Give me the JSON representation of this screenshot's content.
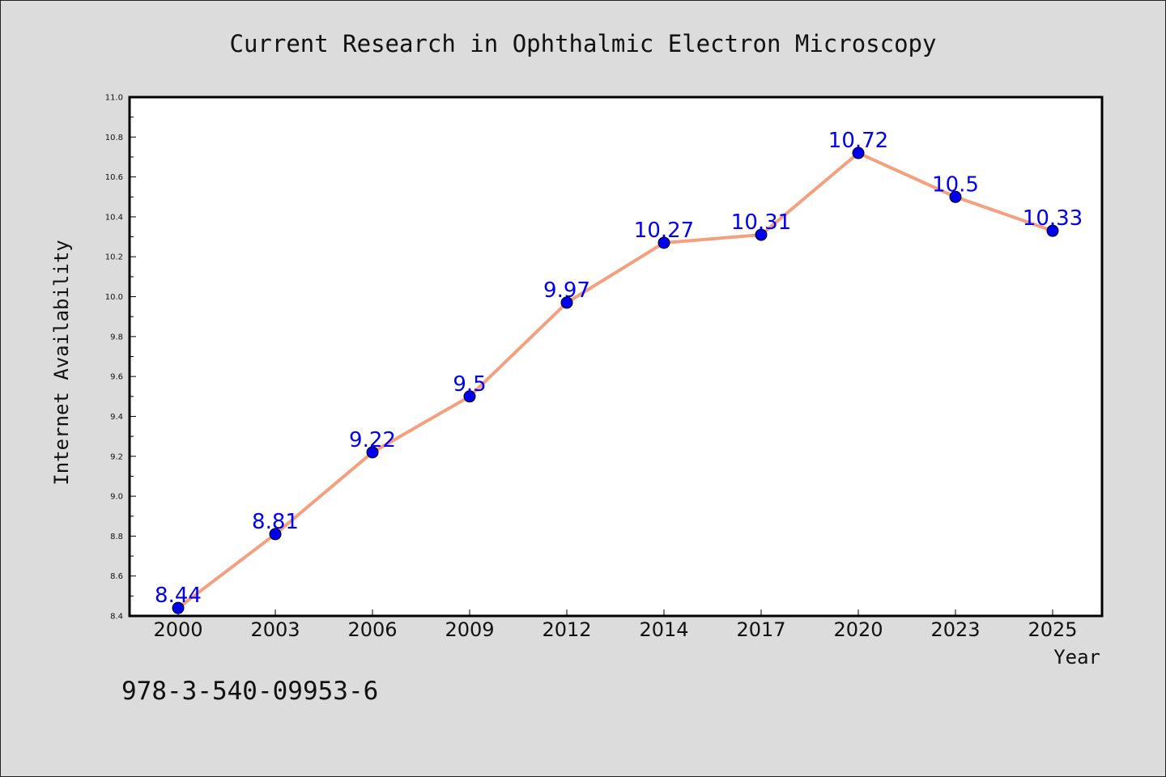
{
  "chart_data": {
    "type": "line",
    "title": "Current Research in Ophthalmic Electron Microscopy",
    "xlabel": "Year",
    "ylabel": "Internet Availability",
    "categories": [
      "2000",
      "2003",
      "2006",
      "2009",
      "2012",
      "2014",
      "2017",
      "2020",
      "2023",
      "2025"
    ],
    "series": [
      {
        "values": [
          8.44,
          8.81,
          9.22,
          9.5,
          9.97,
          10.27,
          10.31,
          10.72,
          10.5,
          10.33
        ],
        "line_color": "#f4a07e",
        "marker_color": "#0000ee",
        "label_color": "#0000ee"
      }
    ],
    "data_labels": [
      "8.44",
      "8.81",
      "9.22",
      "9.5",
      "9.97",
      "10.27",
      "10.31",
      "10.72",
      "10.5",
      "10.33"
    ],
    "ylim": [
      8.4,
      11.0
    ],
    "yticks": [
      "8.4",
      "8.6",
      "8.8",
      "9.0",
      "9.2",
      "9.4",
      "9.6",
      "9.8",
      "10.0",
      "10.2",
      "10.4",
      "10.6",
      "10.8",
      "11.0"
    ],
    "grid": false,
    "legend": "none"
  },
  "footnote": "978-3-540-09953-6"
}
